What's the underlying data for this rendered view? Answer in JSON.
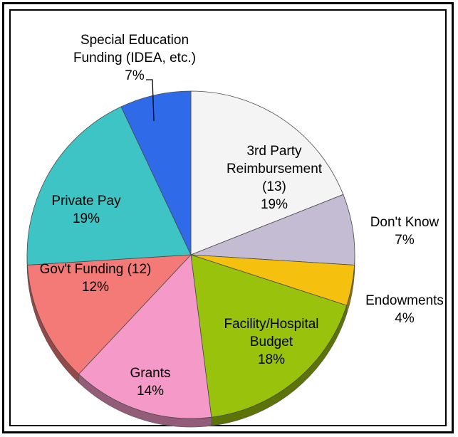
{
  "chart_data": {
    "type": "pie",
    "title": "",
    "slices": [
      {
        "label_lines": [
          "3rd Party",
          "Reimbursement",
          "(13)"
        ],
        "pct_text": "19%",
        "value": 19,
        "color": "#f4f4f4"
      },
      {
        "label_lines": [
          "Don't Know"
        ],
        "pct_text": "7%",
        "value": 7,
        "color": "#c4bcd2"
      },
      {
        "label_lines": [
          "Endowments"
        ],
        "pct_text": "4%",
        "value": 4,
        "color": "#f5c10e"
      },
      {
        "label_lines": [
          "Facility/Hospital",
          "Budget"
        ],
        "pct_text": "18%",
        "value": 18,
        "color": "#99c20c"
      },
      {
        "label_lines": [
          "Grants"
        ],
        "pct_text": "14%",
        "value": 14,
        "color": "#f59ac8"
      },
      {
        "label_lines": [
          "Gov't Funding (12)"
        ],
        "pct_text": "12%",
        "value": 12,
        "color": "#f37a76"
      },
      {
        "label_lines": [
          "Private Pay"
        ],
        "pct_text": "19%",
        "value": 19,
        "color": "#3ec4c4"
      },
      {
        "label_lines": [
          "Special Education",
          "Funding (IDEA, etc.)"
        ],
        "pct_text": "7%",
        "value": 7,
        "color": "#2f6be8"
      }
    ]
  }
}
